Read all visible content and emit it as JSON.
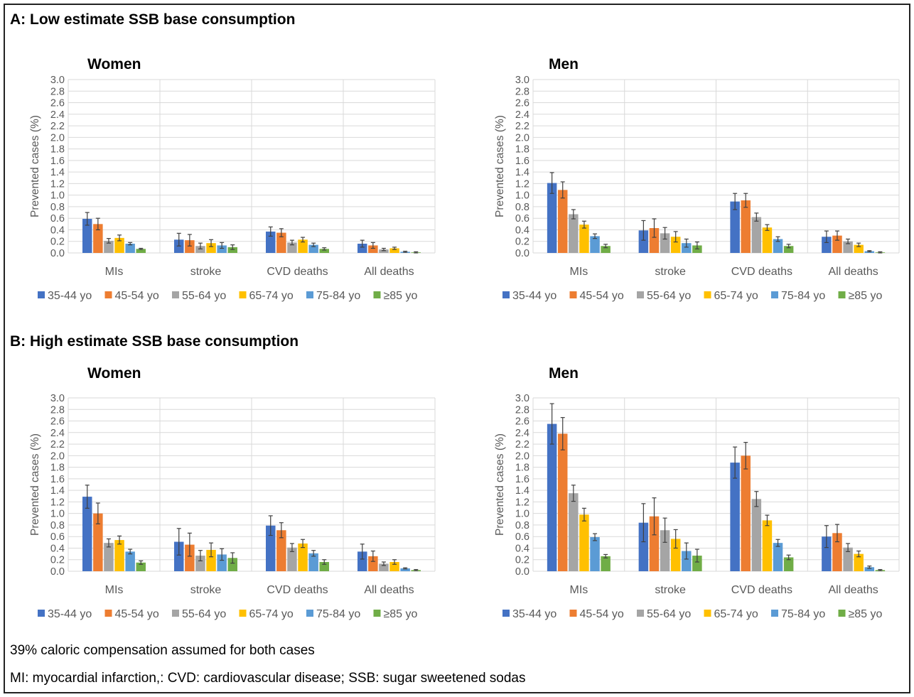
{
  "section_a": {
    "title": "A: Low estimate SSB base consumption"
  },
  "section_b": {
    "title": "B: High estimate SSB base consumption"
  },
  "footnotes": {
    "caloric": "39% caloric compensation assumed for both cases",
    "abbreviations": "MI: myocardial infarction,: CVD: cardiovascular disease; SSB: sugar sweetened sodas"
  },
  "colors": {
    "35-44 yo": "#4472C4",
    "45-54 yo": "#ED7D31",
    "55-64 yo": "#A5A5A5",
    "65-74 yo": "#FFC000",
    "75-84 yo": "#5B9BD5",
    "≥85 yo": "#70AD47",
    "grid": "#D9D9D9",
    "axis_text": "#595959",
    "error_bar": "#404040"
  },
  "chart_data": [
    {
      "type": "bar",
      "title": "Women",
      "panel": "A",
      "ylabel": "Prevented cases (%)",
      "ylim": [
        0,
        3.0
      ],
      "ytick_step": 0.2,
      "grid": true,
      "legend": "bottom",
      "categories": [
        "MIs",
        "stroke",
        "CVD deaths",
        "All deaths"
      ],
      "series": [
        {
          "name": "35-44 yo",
          "values": [
            0.59,
            0.23,
            0.37,
            0.16
          ],
          "errors": [
            0.11,
            0.11,
            0.08,
            0.06
          ]
        },
        {
          "name": "45-54 yo",
          "values": [
            0.5,
            0.22,
            0.35,
            0.13
          ],
          "errors": [
            0.1,
            0.1,
            0.07,
            0.05
          ]
        },
        {
          "name": "55-64 yo",
          "values": [
            0.21,
            0.12,
            0.18,
            0.06
          ],
          "errors": [
            0.04,
            0.05,
            0.04,
            0.02
          ]
        },
        {
          "name": "65-74 yo",
          "values": [
            0.26,
            0.17,
            0.23,
            0.08
          ],
          "errors": [
            0.05,
            0.06,
            0.04,
            0.02
          ]
        },
        {
          "name": "75-84 yo",
          "values": [
            0.16,
            0.13,
            0.14,
            0.02
          ],
          "errors": [
            0.02,
            0.05,
            0.03,
            0.01
          ]
        },
        {
          "name": "≥85 yo",
          "values": [
            0.07,
            0.1,
            0.07,
            0.01
          ],
          "errors": [
            0.01,
            0.04,
            0.02,
            0.01
          ]
        }
      ]
    },
    {
      "type": "bar",
      "title": "Men",
      "panel": "A",
      "ylabel": "Prevented cases (%)",
      "ylim": [
        0,
        3.0
      ],
      "ytick_step": 0.2,
      "grid": true,
      "legend": "bottom",
      "categories": [
        "MIs",
        "stroke",
        "CVD deaths",
        "All deaths"
      ],
      "series": [
        {
          "name": "35-44 yo",
          "values": [
            1.21,
            0.39,
            0.89,
            0.28
          ],
          "errors": [
            0.18,
            0.17,
            0.14,
            0.1
          ]
        },
        {
          "name": "45-54 yo",
          "values": [
            1.09,
            0.43,
            0.91,
            0.3
          ],
          "errors": [
            0.14,
            0.16,
            0.12,
            0.08
          ]
        },
        {
          "name": "55-64 yo",
          "values": [
            0.67,
            0.34,
            0.62,
            0.2
          ],
          "errors": [
            0.08,
            0.1,
            0.07,
            0.04
          ]
        },
        {
          "name": "65-74 yo",
          "values": [
            0.49,
            0.28,
            0.44,
            0.14
          ],
          "errors": [
            0.06,
            0.09,
            0.05,
            0.03
          ]
        },
        {
          "name": "75-84 yo",
          "values": [
            0.29,
            0.17,
            0.24,
            0.03
          ],
          "errors": [
            0.04,
            0.07,
            0.04,
            0.01
          ]
        },
        {
          "name": "≥85 yo",
          "values": [
            0.12,
            0.13,
            0.12,
            0.01
          ],
          "errors": [
            0.03,
            0.06,
            0.03,
            0.01
          ]
        }
      ]
    },
    {
      "type": "bar",
      "title": "Women",
      "panel": "B",
      "ylabel": "Prevented cases (%)",
      "ylim": [
        0,
        3.0
      ],
      "ytick_step": 0.2,
      "grid": true,
      "legend": "bottom",
      "categories": [
        "MIs",
        "stroke",
        "CVD deaths",
        "All deaths"
      ],
      "series": [
        {
          "name": "35-44 yo",
          "values": [
            1.29,
            0.51,
            0.79,
            0.34
          ],
          "errors": [
            0.2,
            0.23,
            0.17,
            0.13
          ]
        },
        {
          "name": "45-54 yo",
          "values": [
            1.0,
            0.46,
            0.71,
            0.26
          ],
          "errors": [
            0.18,
            0.2,
            0.13,
            0.09
          ]
        },
        {
          "name": "55-64 yo",
          "values": [
            0.49,
            0.27,
            0.41,
            0.13
          ],
          "errors": [
            0.07,
            0.09,
            0.07,
            0.03
          ]
        },
        {
          "name": "65-74 yo",
          "values": [
            0.54,
            0.37,
            0.48,
            0.16
          ],
          "errors": [
            0.07,
            0.12,
            0.07,
            0.04
          ]
        },
        {
          "name": "75-84 yo",
          "values": [
            0.34,
            0.29,
            0.31,
            0.05
          ],
          "errors": [
            0.04,
            0.1,
            0.05,
            0.01
          ]
        },
        {
          "name": "≥85 yo",
          "values": [
            0.15,
            0.23,
            0.16,
            0.02
          ],
          "errors": [
            0.03,
            0.09,
            0.04,
            0.01
          ]
        }
      ]
    },
    {
      "type": "bar",
      "title": "Men",
      "panel": "B",
      "ylabel": "Prevented cases (%)",
      "ylim": [
        0,
        3.0
      ],
      "ytick_step": 0.2,
      "grid": true,
      "legend": "bottom",
      "categories": [
        "MIs",
        "stroke",
        "CVD deaths",
        "All deaths"
      ],
      "series": [
        {
          "name": "35-44 yo",
          "values": [
            2.55,
            0.84,
            1.88,
            0.6
          ],
          "errors": [
            0.35,
            0.33,
            0.27,
            0.19
          ]
        },
        {
          "name": "45-54 yo",
          "values": [
            2.38,
            0.95,
            2.0,
            0.66
          ],
          "errors": [
            0.28,
            0.32,
            0.23,
            0.15
          ]
        },
        {
          "name": "55-64 yo",
          "values": [
            1.35,
            0.71,
            1.25,
            0.41
          ],
          "errors": [
            0.14,
            0.21,
            0.13,
            0.07
          ]
        },
        {
          "name": "65-74 yo",
          "values": [
            0.98,
            0.56,
            0.88,
            0.3
          ],
          "errors": [
            0.11,
            0.16,
            0.09,
            0.05
          ]
        },
        {
          "name": "75-84 yo",
          "values": [
            0.59,
            0.35,
            0.49,
            0.07
          ],
          "errors": [
            0.06,
            0.14,
            0.06,
            0.02
          ]
        },
        {
          "name": "≥85 yo",
          "values": [
            0.26,
            0.27,
            0.24,
            0.02
          ],
          "errors": [
            0.03,
            0.11,
            0.04,
            0.01
          ]
        }
      ]
    }
  ]
}
